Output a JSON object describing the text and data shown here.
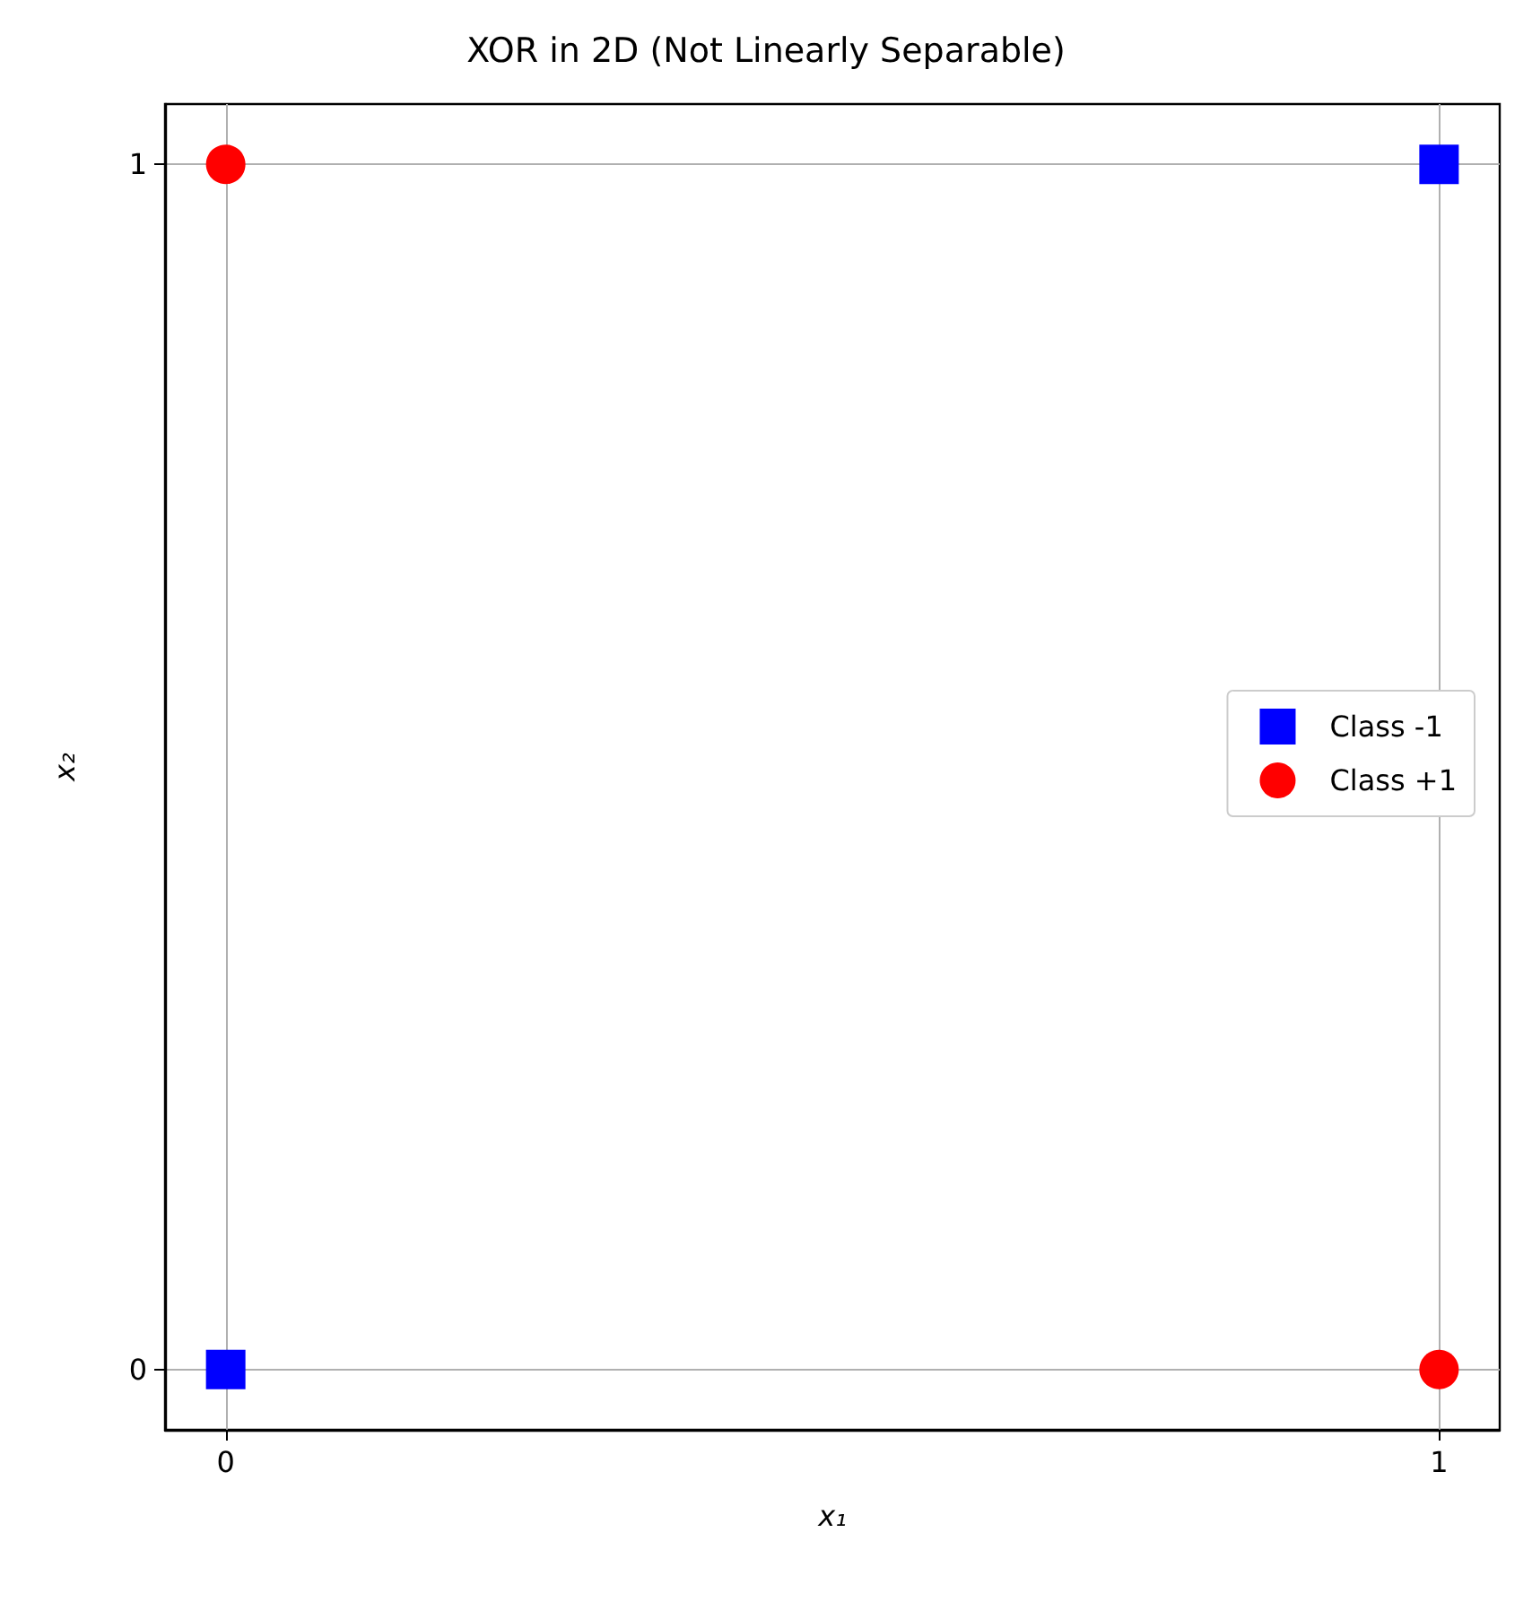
{
  "chart_data": {
    "type": "scatter",
    "title": "XOR in 2D (Not Linearly Separable)",
    "xlabel": "x₁",
    "ylabel": "x₂",
    "xlim": [
      -0.05,
      1.05
    ],
    "ylim": [
      -0.05,
      1.05
    ],
    "xticks": [
      0,
      1
    ],
    "yticks": [
      0,
      1
    ],
    "grid": true,
    "legend": "right",
    "x": [
      0,
      1
    ],
    "series": [
      {
        "name": "Class -1",
        "color": "#0000ff",
        "marker": "square",
        "values": [
          0,
          1
        ]
      },
      {
        "name": "Class +1",
        "color": "#ff0000",
        "marker": "circle",
        "values": [
          1,
          0
        ]
      }
    ]
  }
}
